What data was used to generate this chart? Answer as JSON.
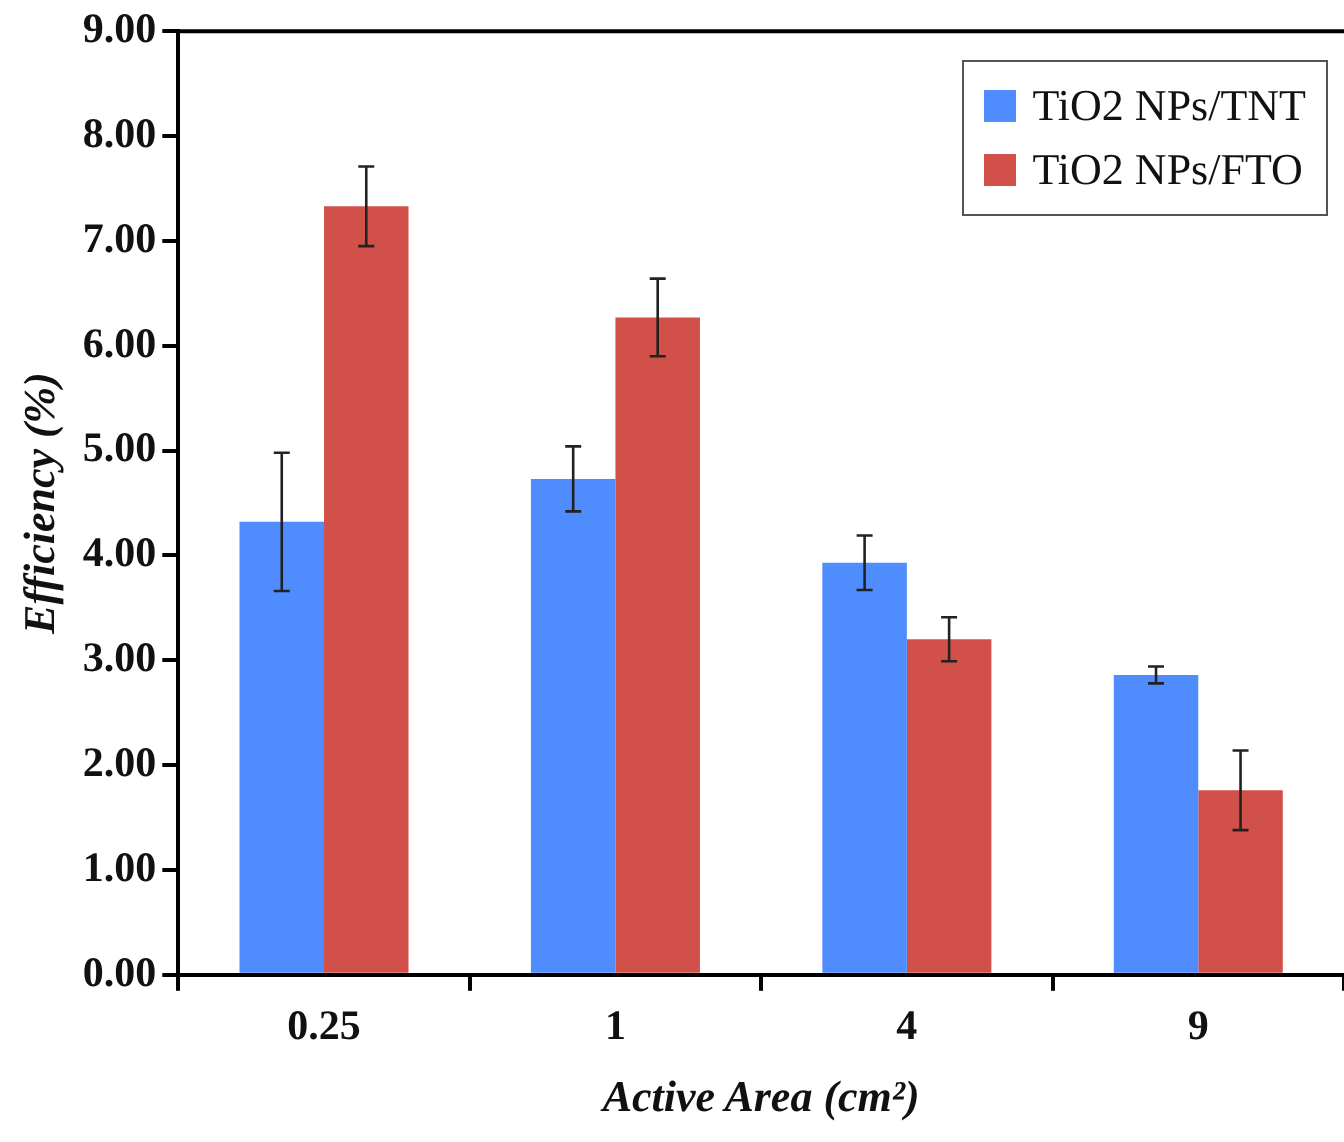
{
  "chart_data": {
    "type": "bar",
    "xlabel": "Active Area (cm²)",
    "ylabel": "Efficiency (%)",
    "categories": [
      "0.25",
      "1",
      "4",
      "9"
    ],
    "series": [
      {
        "name": "TiO2 NPs/TNT",
        "color": "#4f8cfe",
        "values": [
          4.32,
          4.73,
          3.93,
          2.86
        ],
        "errors": [
          0.66,
          0.31,
          0.26,
          0.08
        ]
      },
      {
        "name": "TiO2 NPs/FTO",
        "color": "#d2504a",
        "values": [
          7.33,
          6.27,
          3.2,
          1.76
        ],
        "errors": [
          0.38,
          0.37,
          0.21,
          0.38
        ]
      }
    ],
    "ylim": [
      0,
      9
    ],
    "yticks": [
      {
        "value": 0,
        "label": "0.00"
      },
      {
        "value": 1,
        "label": "1.00"
      },
      {
        "value": 2,
        "label": "2.00"
      },
      {
        "value": 3,
        "label": "3.00"
      },
      {
        "value": 4,
        "label": "4.00"
      },
      {
        "value": 5,
        "label": "5.00"
      },
      {
        "value": 6,
        "label": "6.00"
      },
      {
        "value": 7,
        "label": "7.00"
      },
      {
        "value": 8,
        "label": "8.00"
      },
      {
        "value": 9,
        "label": "9.00"
      }
    ],
    "grid": false,
    "legend": "top right"
  }
}
